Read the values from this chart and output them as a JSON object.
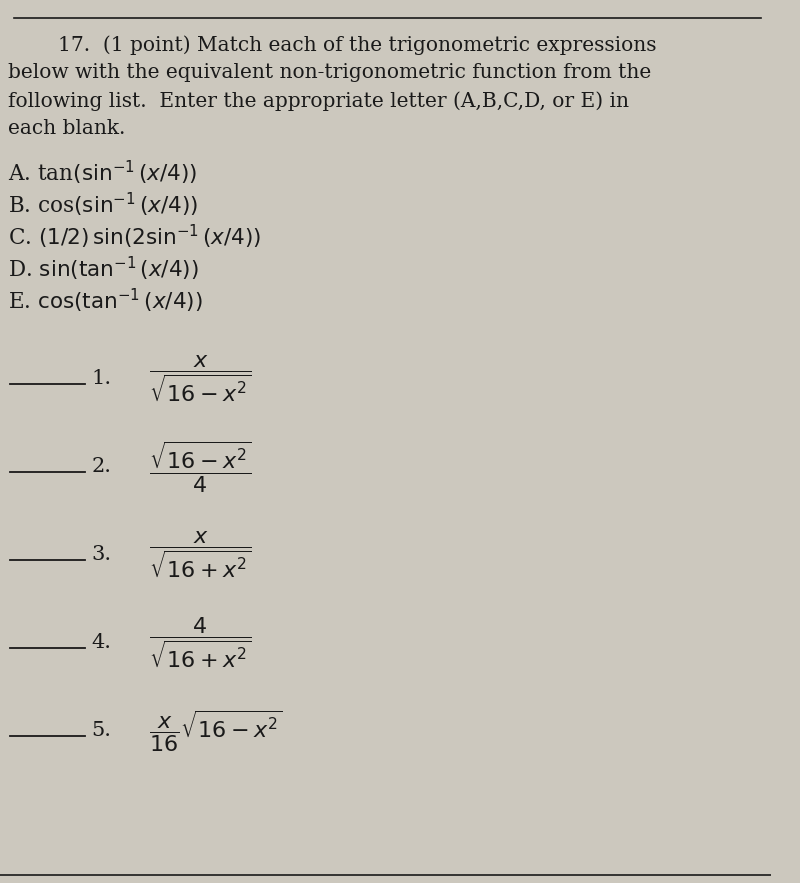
{
  "bg_color": "#ccc8be",
  "text_color": "#1a1a1a",
  "title_line1": "17.  (1 point) Match each of the trigonometric expressions",
  "title_line2": "below with the equivalent non-trigonometric function from the",
  "title_line3": "following list.  Enter the appropriate letter (A,B,C,D, or E) in",
  "title_line4": "each blank.",
  "options_plain": [
    "A. tan(sin$^{-1}$(x/4))",
    "B. cos(sin$^{-1}$(x/4))",
    "C. (1/2) sin(2 sin$^{-1}$(x/4))",
    "D. sin(tan$^{-1}$(x/4))",
    "E. cos(tan$^{-1}$(x/4))"
  ],
  "items": [
    {
      "num": "1.",
      "expr": "$\\dfrac{x}{\\sqrt{16-x^2}}$"
    },
    {
      "num": "2.",
      "expr": "$\\dfrac{\\sqrt{16-x^2}}{4}$"
    },
    {
      "num": "3.",
      "expr": "$\\dfrac{x}{\\sqrt{16+x^2}}$"
    },
    {
      "num": "4.",
      "expr": "$\\dfrac{4}{\\sqrt{16+x^2}}$"
    },
    {
      "num": "5.",
      "expr": "$\\dfrac{x}{16}\\sqrt{16-x^2}$"
    }
  ]
}
